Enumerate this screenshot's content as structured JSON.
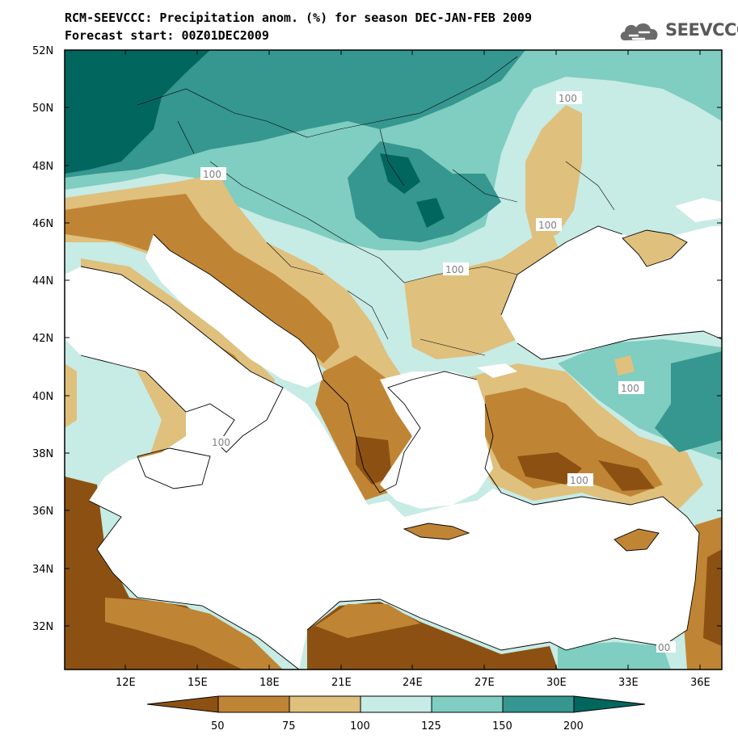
{
  "header": {
    "title": "RCM-SEEVCCC: Precipitation anom. (%) for season DEC-JAN-FEB 2009",
    "subtitle": "Forecast start: 00Z01DEC2009",
    "logo_text": "SEEVCCC"
  },
  "map": {
    "lat_labels": [
      "52N",
      "50N",
      "48N",
      "46N",
      "44N",
      "42N",
      "40N",
      "38N",
      "36N",
      "34N",
      "32N"
    ],
    "lon_labels": [
      "12E",
      "15E",
      "18E",
      "21E",
      "24E",
      "27E",
      "30E",
      "33E",
      "36E"
    ],
    "contour_labels": [
      "100",
      "100",
      "100",
      "100",
      "100",
      "100",
      "100",
      "00"
    ],
    "colors": {
      "very_dry": "#8c5112",
      "dry": "#c08534",
      "slightly_dry": "#dfc07d",
      "slightly_wet": "#c7ebe5",
      "wet": "#80cdc1",
      "very_wet": "#35978f",
      "extreme_wet": "#01665e",
      "sea": "#ffffff"
    }
  },
  "legend": {
    "labels": [
      "50",
      "75",
      "100",
      "125",
      "150",
      "200"
    ],
    "colors": [
      "#8c5112",
      "#c08534",
      "#dfc07d",
      "#c7ebe5",
      "#80cdc1",
      "#35978f",
      "#01665e"
    ]
  }
}
